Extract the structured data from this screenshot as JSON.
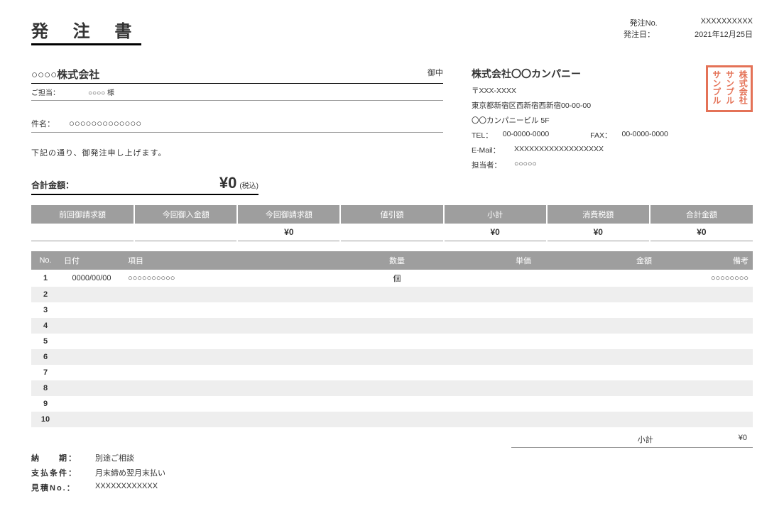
{
  "title": "発 注 書",
  "header": {
    "orderNoLabel": "発注No.",
    "orderNo": "XXXXXXXXXX",
    "orderDateLabel": "発注日：",
    "orderDate": "2021年12月25日"
  },
  "client": {
    "name": "○○○○株式会社",
    "suffix": "御中",
    "contactLabel": "ご担当：",
    "contact": "○○○○ 様",
    "subjectLabel": "件名：",
    "subject": "○○○○○○○○○○○○○"
  },
  "notice": "下記の通り、御発注申し上げます。",
  "total": {
    "label": "合計金額：",
    "value": "¥0",
    "suffix": "(税込)"
  },
  "company": {
    "name": "株式会社〇〇カンパニー",
    "postal": "〒XXX-XXXX",
    "address": "東京都新宿区西新宿西新宿00-00-00",
    "building": " 〇〇カンパニービル 5F",
    "telLabel": "TEL：",
    "tel": "00-0000-0000",
    "faxLabel": "FAX：",
    "fax": "00-0000-0000",
    "emailLabel": "E-Mail：",
    "email": "XXXXXXXXXXXXXXXXXX",
    "repLabel": "担当者：",
    "rep": "○○○○○"
  },
  "stamp": {
    "c1": "株式会社",
    "c2": "サンプル",
    "c3": "サンプル"
  },
  "summary": {
    "headers": [
      "前回御請求額",
      "今回御入金額",
      "今回御請求額",
      "値引額",
      "小計",
      "消費税額",
      "合計金額"
    ],
    "values": [
      "",
      "",
      "¥0",
      "",
      "¥0",
      "¥0",
      "¥0"
    ]
  },
  "items": {
    "headers": {
      "no": "No.",
      "date": "日付",
      "name": "項目",
      "qty": "数量",
      "unit": "単価",
      "amount": "金額",
      "note": "備考"
    },
    "rows": [
      {
        "no": "1",
        "date": "0000/00/00",
        "name": "○○○○○○○○○○",
        "qty": "個",
        "unit": "",
        "amount": "",
        "note": "○○○○○○○○"
      },
      {
        "no": "2",
        "date": "",
        "name": "",
        "qty": "",
        "unit": "",
        "amount": "",
        "note": ""
      },
      {
        "no": "3",
        "date": "",
        "name": "",
        "qty": "",
        "unit": "",
        "amount": "",
        "note": ""
      },
      {
        "no": "4",
        "date": "",
        "name": "",
        "qty": "",
        "unit": "",
        "amount": "",
        "note": ""
      },
      {
        "no": "5",
        "date": "",
        "name": "",
        "qty": "",
        "unit": "",
        "amount": "",
        "note": ""
      },
      {
        "no": "6",
        "date": "",
        "name": "",
        "qty": "",
        "unit": "",
        "amount": "",
        "note": ""
      },
      {
        "no": "7",
        "date": "",
        "name": "",
        "qty": "",
        "unit": "",
        "amount": "",
        "note": ""
      },
      {
        "no": "8",
        "date": "",
        "name": "",
        "qty": "",
        "unit": "",
        "amount": "",
        "note": ""
      },
      {
        "no": "9",
        "date": "",
        "name": "",
        "qty": "",
        "unit": "",
        "amount": "",
        "note": ""
      },
      {
        "no": "10",
        "date": "",
        "name": "",
        "qty": "",
        "unit": "",
        "amount": "",
        "note": ""
      }
    ]
  },
  "subtotal": {
    "label": "小計",
    "value": "¥0"
  },
  "terms": {
    "deliveryLabel": "納　　期：",
    "delivery": "別途ご相談",
    "paymentLabel": "支払条件：",
    "payment": "月末締め翌月末払い",
    "estimateNoLabel": "見積No.：",
    "estimateNo": "XXXXXXXXXXXX"
  },
  "colors": {
    "headerBg": "#9e9e9e",
    "headerText": "#ffffff",
    "stripe": "#eeeeee",
    "stamp": "#e05a3a"
  }
}
